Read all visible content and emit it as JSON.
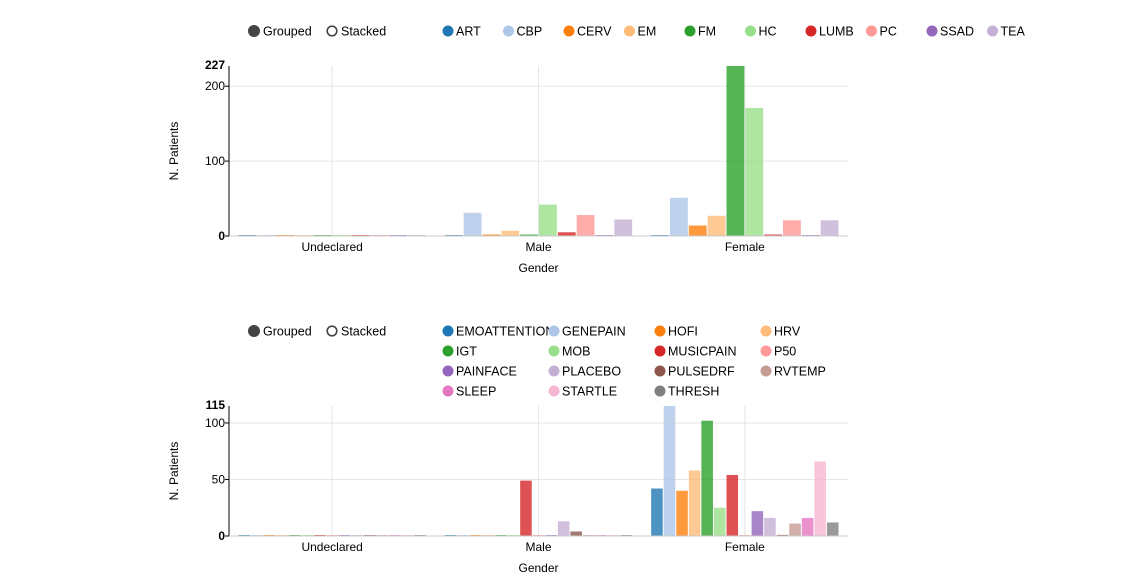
{
  "controls": {
    "grouped_label": "Grouped",
    "stacked_label": "Stacked",
    "selected": "Grouped"
  },
  "chart_data": [
    {
      "type": "bar",
      "mode": "grouped",
      "categories": [
        "Undeclared",
        "Male",
        "Female"
      ],
      "xlabel": "Gender",
      "ylabel": "N. Patients",
      "ylim": [
        0,
        227
      ],
      "yticks": [
        0,
        100,
        200
      ],
      "ymax_label": "227",
      "grid": true,
      "legend_columns": 10,
      "series": [
        {
          "name": "ART",
          "color": "#1f77b4",
          "values": [
            0,
            0,
            1
          ]
        },
        {
          "name": "CBP",
          "color": "#aec7e8",
          "values": [
            0,
            31,
            51
          ]
        },
        {
          "name": "CERV",
          "color": "#ff7f0e",
          "values": [
            0,
            2,
            14
          ]
        },
        {
          "name": "EM",
          "color": "#ffbb78",
          "values": [
            0,
            7,
            27
          ]
        },
        {
          "name": "FM",
          "color": "#2ca02c",
          "values": [
            0,
            2,
            227
          ]
        },
        {
          "name": "HC",
          "color": "#98df8a",
          "values": [
            0,
            42,
            171
          ]
        },
        {
          "name": "LUMB",
          "color": "#d62728",
          "values": [
            0,
            5,
            2
          ]
        },
        {
          "name": "PC",
          "color": "#ff9896",
          "values": [
            0,
            28,
            21
          ]
        },
        {
          "name": "SSAD",
          "color": "#9467bd",
          "values": [
            0,
            0,
            1
          ]
        },
        {
          "name": "TEA",
          "color": "#c5b0d5",
          "values": [
            0,
            22,
            21
          ]
        }
      ]
    },
    {
      "type": "bar",
      "mode": "grouped",
      "categories": [
        "Undeclared",
        "Male",
        "Female"
      ],
      "xlabel": "Gender",
      "ylabel": "N. Patients",
      "ylim": [
        0,
        115
      ],
      "yticks": [
        0,
        50,
        100
      ],
      "ymax_label": "115",
      "grid": true,
      "legend_columns": 4,
      "series": [
        {
          "name": "EMOATTENTION",
          "color": "#1f77b4",
          "values": [
            0,
            0,
            42
          ]
        },
        {
          "name": "GENEPAIN",
          "color": "#aec7e8",
          "values": [
            0,
            0,
            115
          ]
        },
        {
          "name": "HOFI",
          "color": "#ff7f0e",
          "values": [
            0,
            0,
            40
          ]
        },
        {
          "name": "HRV",
          "color": "#ffbb78",
          "values": [
            0,
            0,
            58
          ]
        },
        {
          "name": "IGT",
          "color": "#2ca02c",
          "values": [
            0,
            0,
            102
          ]
        },
        {
          "name": "MOB",
          "color": "#98df8a",
          "values": [
            0,
            0,
            25
          ]
        },
        {
          "name": "MUSICPAIN",
          "color": "#d62728",
          "values": [
            0,
            49,
            54
          ]
        },
        {
          "name": "P50",
          "color": "#ff9896",
          "values": [
            0,
            0,
            0
          ]
        },
        {
          "name": "PAINFACE",
          "color": "#9467bd",
          "values": [
            0,
            0,
            22
          ]
        },
        {
          "name": "PLACEBO",
          "color": "#c5b0d5",
          "values": [
            0,
            13,
            16
          ]
        },
        {
          "name": "PULSEDRF",
          "color": "#8c564b",
          "values": [
            0,
            4,
            1
          ]
        },
        {
          "name": "RVTEMP",
          "color": "#c49c94",
          "values": [
            0,
            0,
            11
          ]
        },
        {
          "name": "SLEEP",
          "color": "#e377c2",
          "values": [
            0,
            0,
            16
          ]
        },
        {
          "name": "STARTLE",
          "color": "#f7b6d2",
          "values": [
            0,
            0,
            66
          ]
        },
        {
          "name": "THRESH",
          "color": "#7f7f7f",
          "values": [
            0,
            0,
            12
          ]
        }
      ]
    }
  ]
}
